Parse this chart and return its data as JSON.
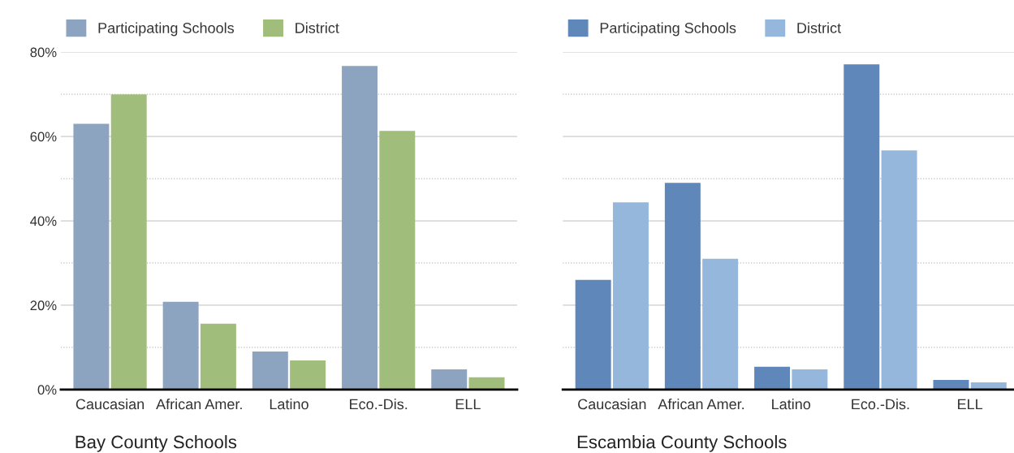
{
  "chart_data": [
    {
      "type": "bar",
      "title": "Bay County Schools",
      "categories": [
        "Caucasian",
        "African Amer.",
        "Latino",
        "Eco.-Dis.",
        "ELL"
      ],
      "series": [
        {
          "name": "Participating Schools",
          "color": "#8da4c0",
          "values": [
            63,
            20.8,
            9,
            76.7,
            4.8
          ]
        },
        {
          "name": "District",
          "color": "#a0bd7c",
          "values": [
            70,
            15.6,
            6.9,
            61.3,
            2.9
          ]
        }
      ],
      "ylim": [
        0,
        80
      ],
      "yticks": [
        {
          "value": 0,
          "label": "0%"
        },
        {
          "value": 10,
          "label": null
        },
        {
          "value": 20,
          "label": "20%"
        },
        {
          "value": 30,
          "label": null
        },
        {
          "value": 40,
          "label": "40%"
        },
        {
          "value": 50,
          "label": null
        },
        {
          "value": 60,
          "label": "60%"
        },
        {
          "value": 70,
          "label": null
        },
        {
          "value": 80,
          "label": "80%"
        }
      ],
      "grid": "y",
      "legend": "top left"
    },
    {
      "type": "bar",
      "title": "Escambia County Schools",
      "categories": [
        "Caucasian",
        "African Amer.",
        "Latino",
        "Eco.-Dis.",
        "ELL"
      ],
      "series": [
        {
          "name": "Participating Schools",
          "color": "#5f87ba",
          "values": [
            26,
            49,
            5.4,
            77.1,
            2.3
          ]
        },
        {
          "name": "District",
          "color": "#95b7dc",
          "values": [
            44.4,
            31,
            4.8,
            56.7,
            1.7
          ]
        }
      ],
      "ylim": [
        0,
        80
      ],
      "yticks": [
        {
          "value": 0,
          "label": null
        },
        {
          "value": 10,
          "label": null
        },
        {
          "value": 20,
          "label": null
        },
        {
          "value": 30,
          "label": null
        },
        {
          "value": 40,
          "label": null
        },
        {
          "value": 50,
          "label": null
        },
        {
          "value": 60,
          "label": null
        },
        {
          "value": 70,
          "label": null
        },
        {
          "value": 80,
          "label": null
        }
      ],
      "grid": "y",
      "legend": "top left",
      "tick_labels": "x"
    }
  ]
}
